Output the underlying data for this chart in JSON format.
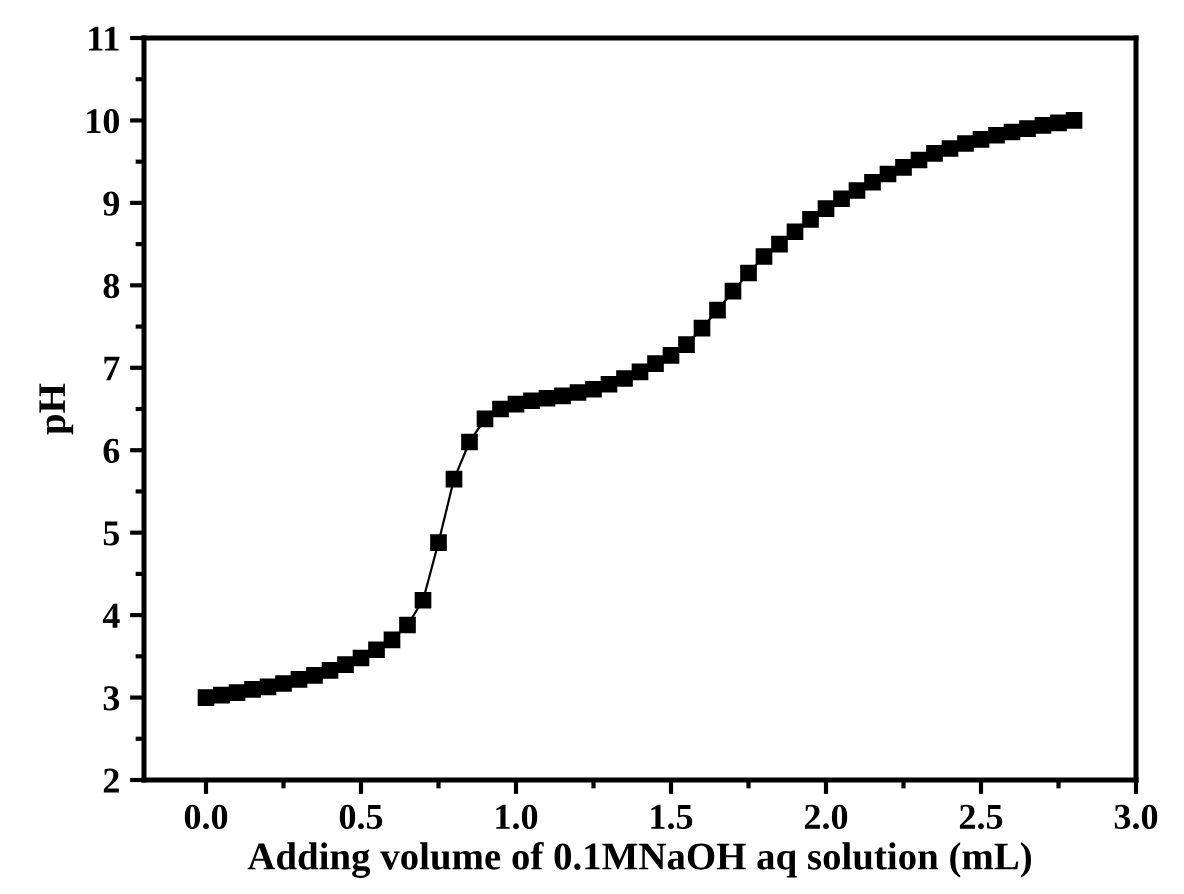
{
  "chart_data": {
    "type": "line",
    "xlabel": "Adding volume of 0.1MNaOH aq solution (mL)",
    "ylabel": "pH",
    "x": [
      0.0,
      0.05,
      0.1,
      0.15,
      0.2,
      0.25,
      0.3,
      0.35,
      0.4,
      0.45,
      0.5,
      0.55,
      0.6,
      0.65,
      0.7,
      0.75,
      0.8,
      0.85,
      0.9,
      0.95,
      1.0,
      1.05,
      1.1,
      1.15,
      1.2,
      1.25,
      1.3,
      1.35,
      1.4,
      1.45,
      1.5,
      1.55,
      1.6,
      1.65,
      1.7,
      1.75,
      1.8,
      1.85,
      1.9,
      1.95,
      2.0,
      2.05,
      2.1,
      2.15,
      2.2,
      2.25,
      2.3,
      2.35,
      2.4,
      2.45,
      2.5,
      2.55,
      2.6,
      2.65,
      2.7,
      2.75,
      2.8
    ],
    "series": [
      {
        "color": "#000000",
        "values": [
          3.0,
          3.03,
          3.06,
          3.1,
          3.13,
          3.17,
          3.22,
          3.27,
          3.33,
          3.4,
          3.48,
          3.58,
          3.7,
          3.88,
          4.18,
          4.88,
          5.65,
          6.1,
          6.38,
          6.5,
          6.56,
          6.6,
          6.63,
          6.66,
          6.7,
          6.74,
          6.8,
          6.87,
          6.95,
          7.05,
          7.15,
          7.28,
          7.48,
          7.7,
          7.93,
          8.15,
          8.35,
          8.5,
          8.65,
          8.8,
          8.93,
          9.05,
          9.15,
          9.25,
          9.35,
          9.43,
          9.52,
          9.6,
          9.66,
          9.72,
          9.77,
          9.82,
          9.86,
          9.9,
          9.94,
          9.97,
          10.0
        ]
      }
    ],
    "xlim": [
      -0.2,
      3.0
    ],
    "xticks": [
      {
        "value": 0.0,
        "label": "0.0"
      },
      0.5,
      {
        "value": 1.0,
        "label": "1.0"
      },
      1.5,
      {
        "value": 2.0,
        "label": "2.0"
      },
      2.5,
      {
        "value": 3.0,
        "label": "3.0"
      }
    ],
    "ylim": [
      2,
      11
    ],
    "yticks": [
      2,
      3,
      4,
      5,
      6,
      7,
      8,
      9,
      10,
      11
    ],
    "marker": "square",
    "line_style": "solid",
    "grid": false,
    "legend": false
  }
}
